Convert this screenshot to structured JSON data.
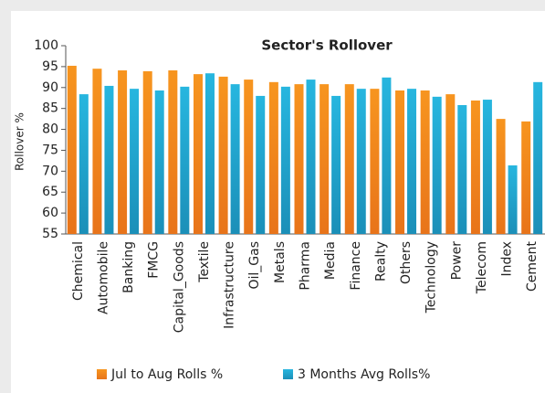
{
  "chart_data": {
    "type": "bar",
    "title": "Sector's Rollover",
    "y_label": "Rollover %",
    "categories": [
      "Chemical",
      "Automobile",
      "Banking",
      "FMCG",
      "Capital_Goods",
      "Textile",
      "Infrastructure",
      "Oil_Gas",
      "Metals",
      "Pharma",
      "Media",
      "Finance",
      "Realty",
      "Others",
      "Technology",
      "Power",
      "Telecom",
      "Index",
      "Cement"
    ],
    "series": [
      {
        "name": "Jul to Aug Rolls %",
        "color": "#f58a1f",
        "values": [
          95.2,
          94.5,
          94.1,
          93.9,
          94.1,
          93.2,
          92.6,
          91.9,
          91.3,
          90.8,
          90.8,
          90.8,
          89.7,
          89.3,
          89.3,
          88.4,
          86.9,
          82.5,
          81.9
        ]
      },
      {
        "name": "3 Months Avg Rolls%",
        "color": "#1fa9d6",
        "values": [
          88.4,
          90.4,
          89.7,
          89.3,
          90.2,
          93.4,
          90.8,
          88.0,
          90.2,
          91.9,
          88.0,
          89.7,
          92.4,
          89.7,
          87.8,
          85.8,
          87.1,
          71.4,
          91.3
        ]
      }
    ],
    "ylim": [
      55,
      100
    ],
    "yticks": [
      55,
      60,
      65,
      70,
      75,
      80,
      85,
      90,
      95,
      100
    ]
  }
}
